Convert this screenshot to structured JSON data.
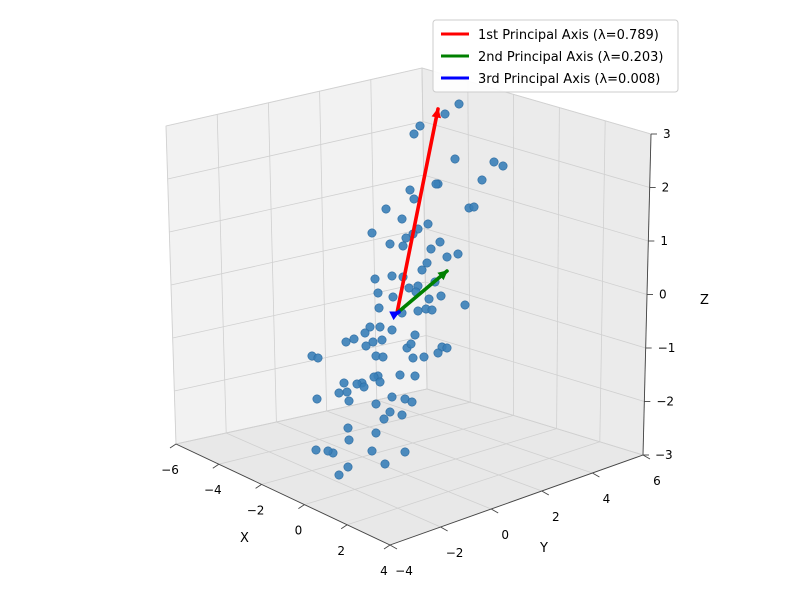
{
  "chart_data": {
    "type": "scatter",
    "projection": "3d",
    "xlabel": "X",
    "ylabel": "Y",
    "zlabel": "Z",
    "xlim": [
      -6,
      4
    ],
    "ylim": [
      -4,
      6
    ],
    "zlim": [
      -3,
      3
    ],
    "xticks": [
      "−6",
      "−4",
      "−2",
      "0",
      "2",
      "4"
    ],
    "yticks": [
      "−4",
      "−2",
      "0",
      "2",
      "4",
      "6"
    ],
    "zticks": [
      "−3",
      "−2",
      "−1",
      "0",
      "1",
      "2",
      "3"
    ],
    "grid": true,
    "legend_position": "top-right",
    "point_color": "#3a7fb8",
    "vectors": [
      {
        "name": "1st Principal Axis (λ=0.789)",
        "color": "#ff0000"
      },
      {
        "name": "2nd Principal Axis (λ=0.203)",
        "color": "#008000"
      },
      {
        "name": "3rd Principal Axis (λ=0.008)",
        "color": "#0000ff"
      }
    ]
  }
}
